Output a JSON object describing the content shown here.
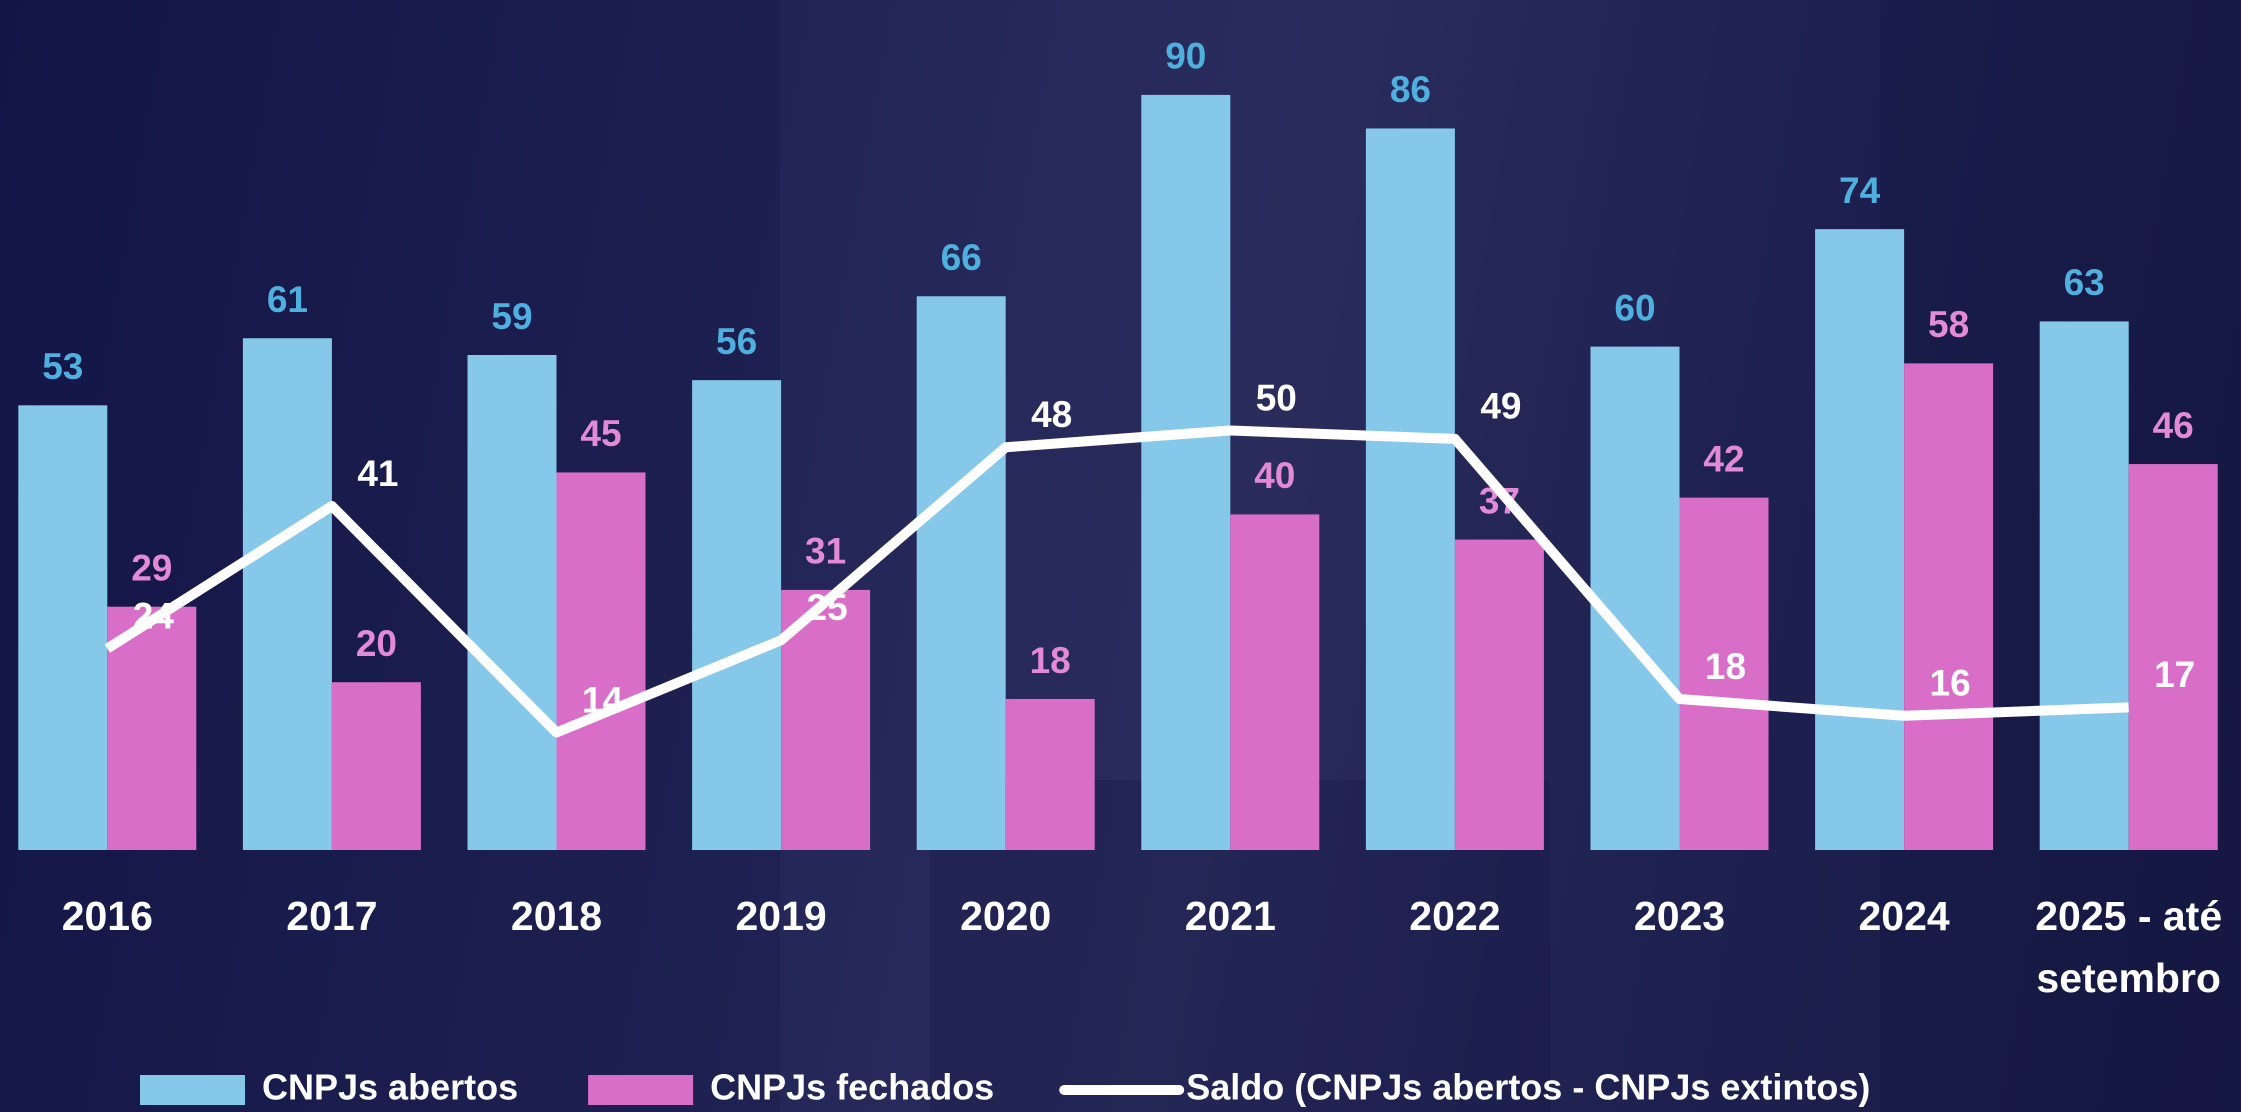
{
  "chart_data": {
    "type": "bar",
    "categories": [
      "2016",
      "2017",
      "2018",
      "2019",
      "2020",
      "2021",
      "2022",
      "2023",
      "2024",
      "2025 - até setembro"
    ],
    "series": [
      {
        "name": "CNPJs abertos",
        "color": "#85c8ea",
        "label_color": "#4fb0e0",
        "values": [
          53,
          61,
          59,
          56,
          66,
          90,
          86,
          60,
          74,
          63
        ]
      },
      {
        "name": "CNPJs fechados",
        "color": "#d86ec8",
        "label_color": "#e38ad6",
        "values": [
          29,
          20,
          45,
          31,
          18,
          40,
          37,
          42,
          58,
          46
        ]
      },
      {
        "name": "Saldo (CNPJs abertos - CNPJs extintos)",
        "kind": "line",
        "color": "#ffffff",
        "values": [
          24,
          41,
          14,
          25,
          48,
          50,
          49,
          18,
          16,
          17
        ]
      }
    ],
    "ylim": [
      0,
      100
    ]
  }
}
